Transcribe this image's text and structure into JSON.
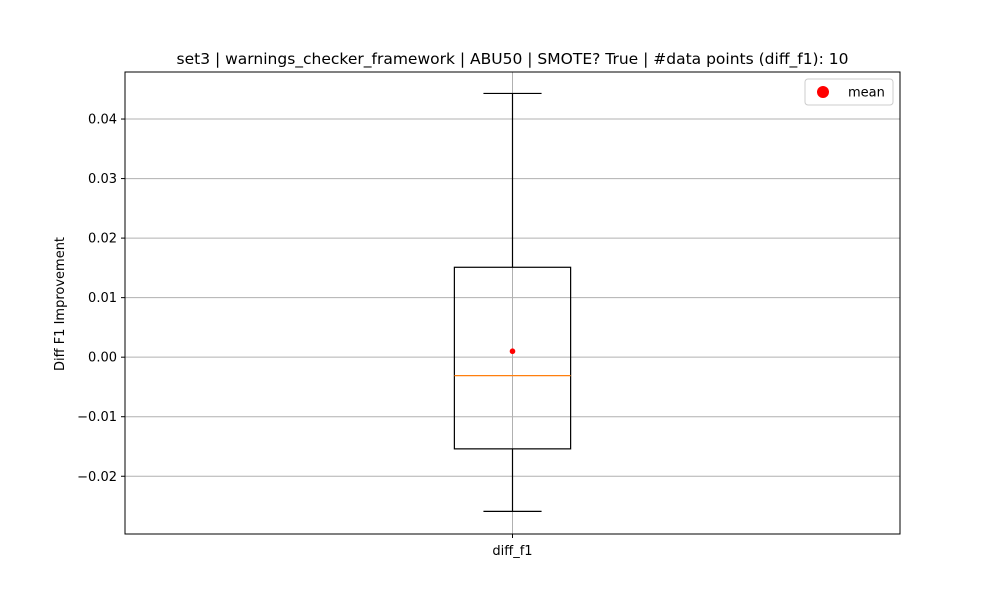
{
  "chart_data": {
    "type": "box",
    "title": "set3 | warnings_checker_framework | ABU50 | SMOTE? True | #data points (diff_f1): 10",
    "xlabel": "",
    "ylabel": "Diff F1 Improvement",
    "categories": [
      "diff_f1"
    ],
    "ylim": [
      -0.0297,
      0.0479
    ],
    "yticks": [
      -0.02,
      -0.01,
      0.0,
      0.01,
      0.02,
      0.03,
      0.04
    ],
    "ytick_labels": [
      "−0.02",
      "−0.01",
      "0.00",
      "0.01",
      "0.02",
      "0.03",
      "0.04"
    ],
    "grid": true,
    "legend": {
      "placement": "top-right",
      "entries": [
        "mean"
      ]
    },
    "boxes": [
      {
        "name": "diff_f1",
        "whisker_low": -0.0259,
        "q1": -0.0154,
        "median": -0.0031,
        "q3": 0.0151,
        "whisker_high": 0.0443,
        "mean": 0.001,
        "n": 10
      }
    ],
    "colors": {
      "box": "#000000",
      "median": "#ff7f0e",
      "mean": "#ff0000",
      "grid": "#b0b0b0"
    }
  }
}
